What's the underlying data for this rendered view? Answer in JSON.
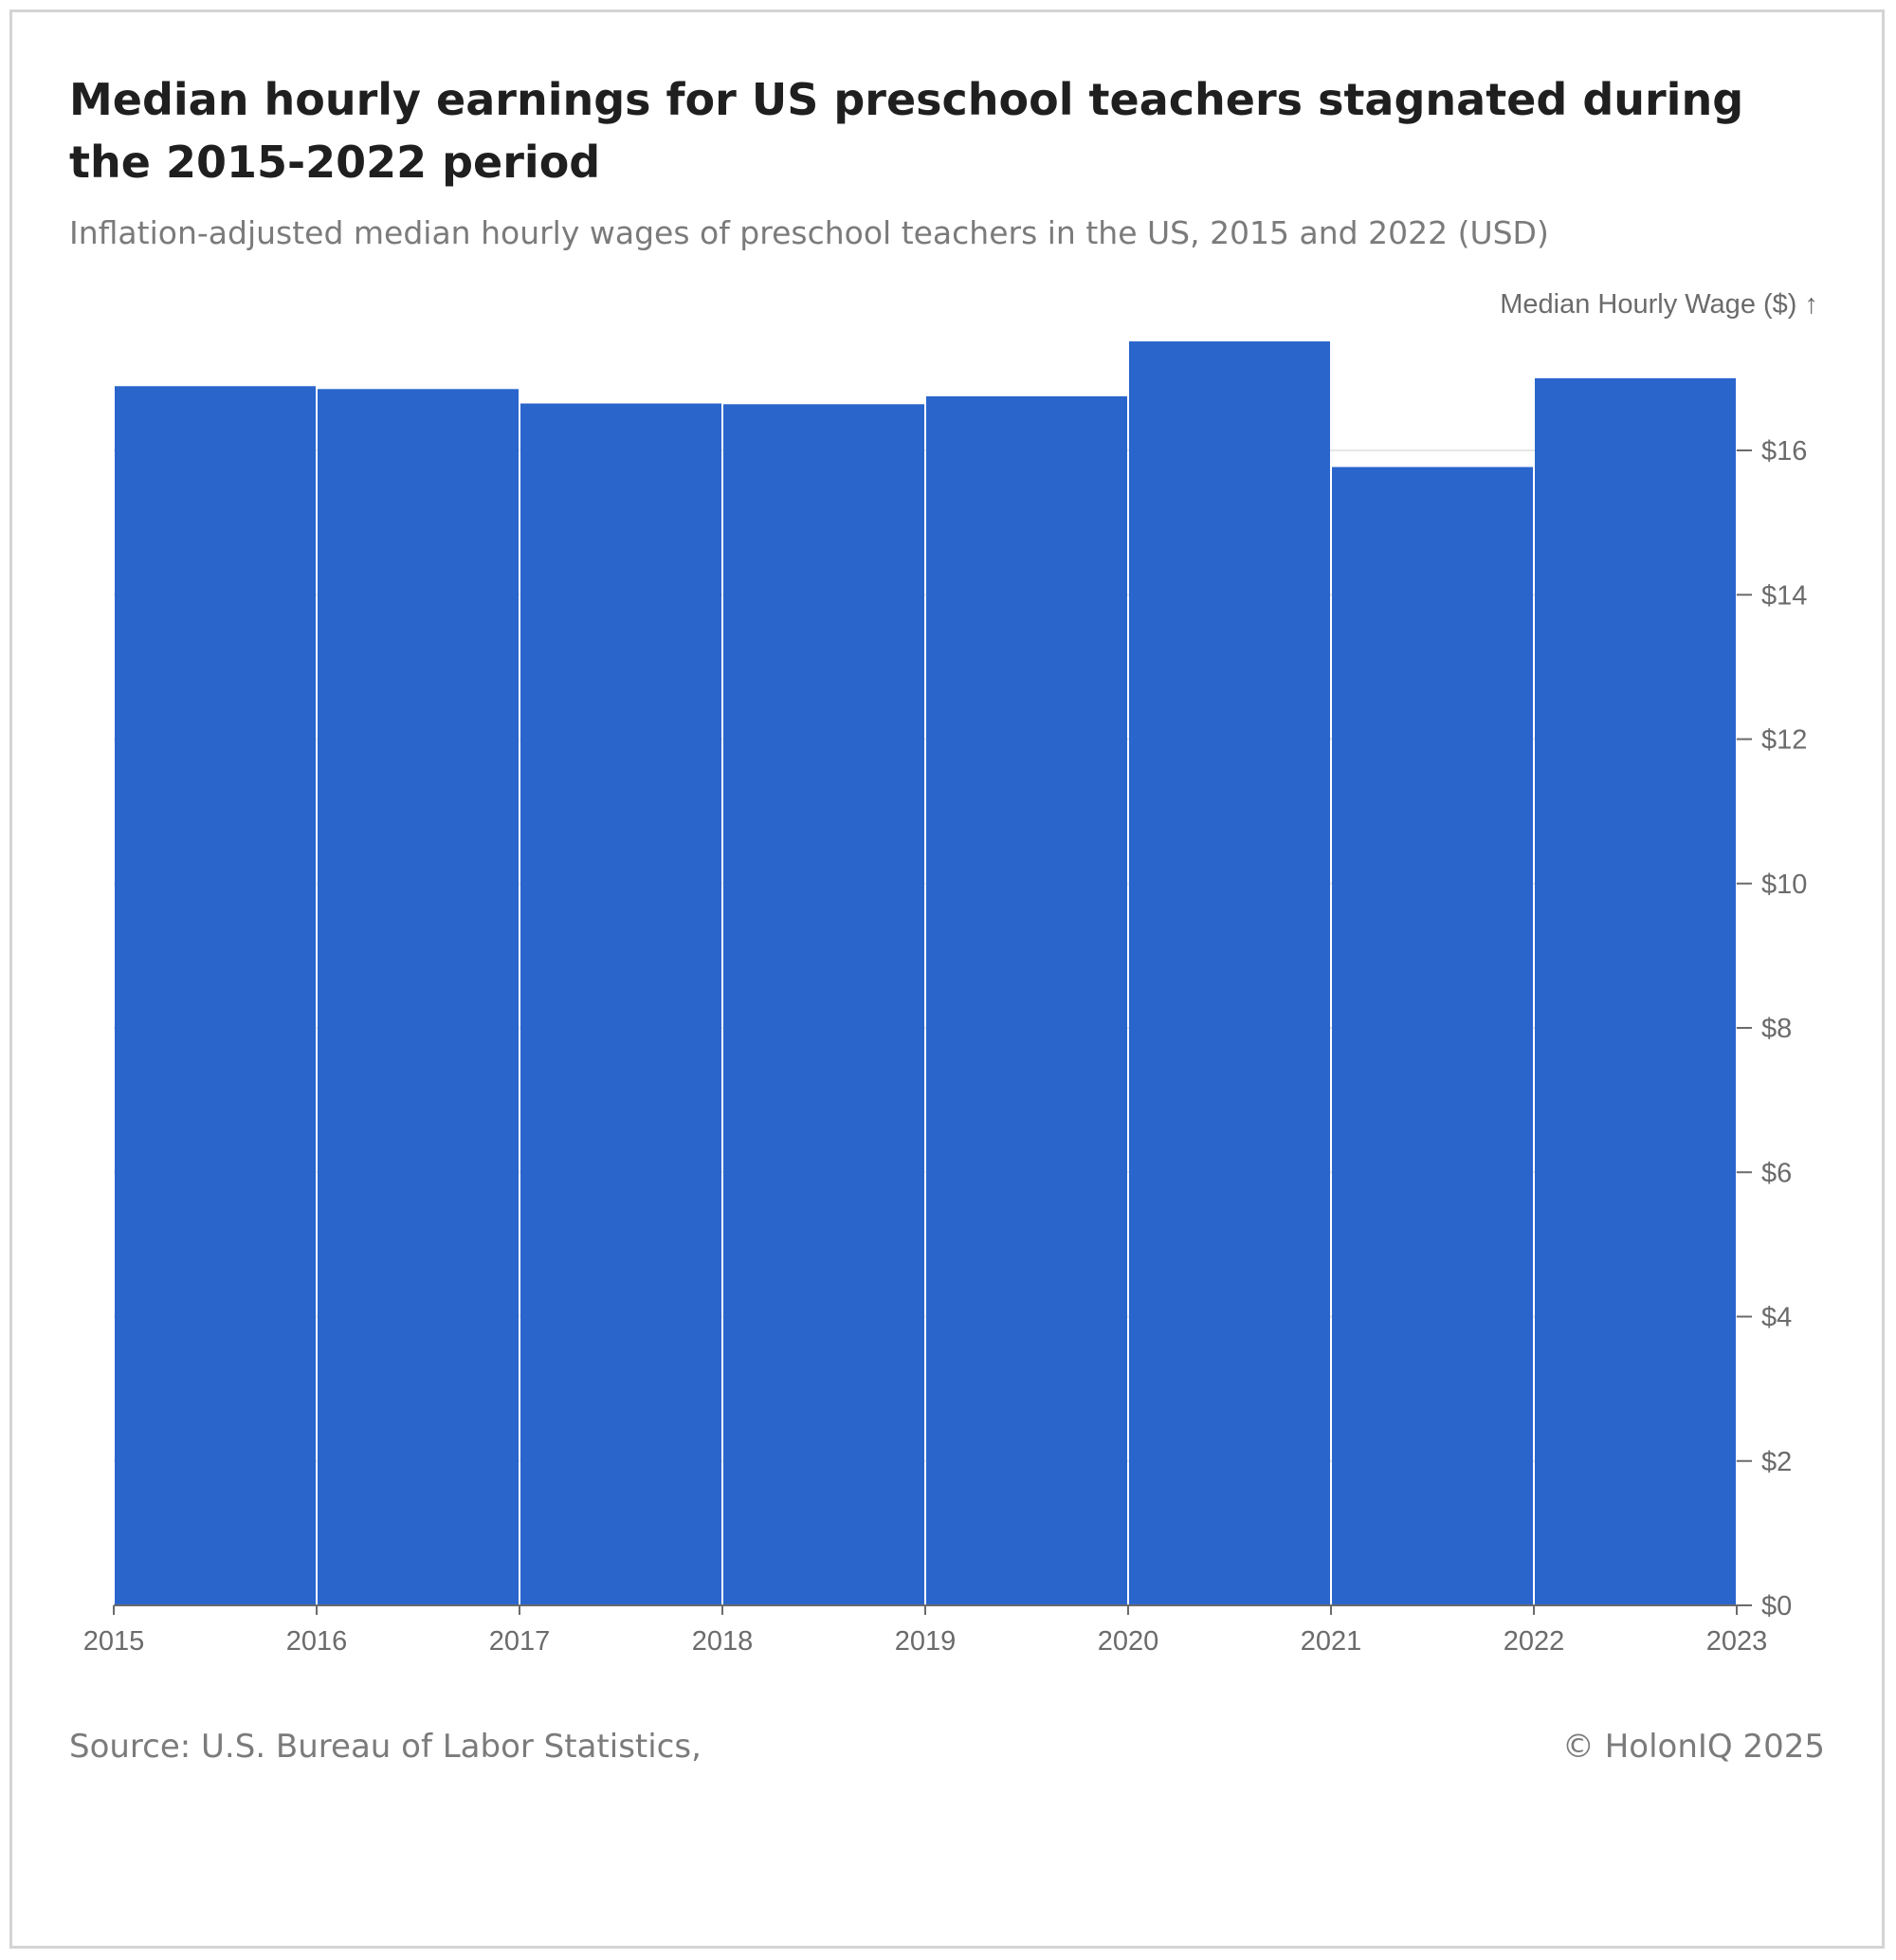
{
  "header": {
    "title": "Median hourly earnings for US preschool teachers stagnated during the 2015-2022 period",
    "subtitle": "Inflation-adjusted median hourly wages of preschool teachers in the US, 2015 and 2022 (USD)"
  },
  "footer": {
    "source": "Source: U.S. Bureau of Labor Statistics,",
    "credit": "© HolonIQ 2025"
  },
  "colors": {
    "bar": "#2a65cc",
    "grid": "#e6e6e6",
    "axis": "#6b6b6b"
  },
  "chart_data": {
    "type": "bar",
    "title": "Median hourly earnings for US preschool teachers stagnated during the 2015-2022 period",
    "subtitle": "Inflation-adjusted median hourly wages of preschool teachers in the US, 2015 and 2022 (USD)",
    "ylabel": "Median Hourly Wage ($) ↑",
    "xlabel": "",
    "bins": [
      {
        "start": 2015,
        "end": 2016,
        "value": 16.89
      },
      {
        "start": 2016,
        "end": 2017,
        "value": 16.85
      },
      {
        "start": 2017,
        "end": 2018,
        "value": 16.65
      },
      {
        "start": 2018,
        "end": 2019,
        "value": 16.64
      },
      {
        "start": 2019,
        "end": 2020,
        "value": 16.75
      },
      {
        "start": 2020,
        "end": 2021,
        "value": 17.51
      },
      {
        "start": 2021,
        "end": 2022,
        "value": 15.77
      },
      {
        "start": 2022,
        "end": 2023,
        "value": 17.0
      }
    ],
    "xlim": [
      2015,
      2023
    ],
    "x_ticks": [
      "2015",
      "2016",
      "2017",
      "2018",
      "2019",
      "2020",
      "2021",
      "2022",
      "2023"
    ],
    "ylim": [
      0,
      17.5
    ],
    "y_ticks": [
      0,
      2,
      4,
      6,
      8,
      10,
      12,
      14,
      16
    ],
    "y_tick_labels": [
      "$0",
      "$2",
      "$4",
      "$6",
      "$8",
      "$10",
      "$12",
      "$14",
      "$16"
    ],
    "y_axis_side": "right",
    "grid": true
  }
}
